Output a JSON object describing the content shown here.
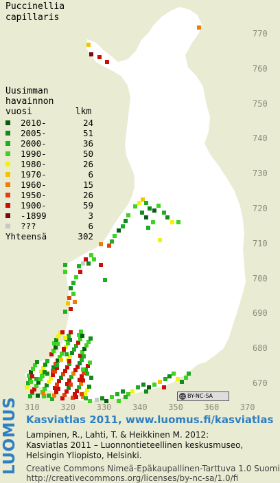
{
  "map": {
    "species": "Puccinellia",
    "species_line2": "capillaris",
    "legend_header": [
      "Uusimman",
      "havainnon",
      "vuosi        lkm"
    ],
    "legend": [
      {
        "label": "2010-",
        "count": "24",
        "color": "#0a5c12"
      },
      {
        "label": "2005-",
        "count": "51",
        "color": "#138a1c"
      },
      {
        "label": "2000-",
        "count": "36",
        "color": "#1fae22"
      },
      {
        "label": "1990-",
        "count": "50",
        "color": "#3cd41e"
      },
      {
        "label": "1980-",
        "count": "26",
        "color": "#f2f20a"
      },
      {
        "label": "1970-",
        "count": "6",
        "color": "#f2c400"
      },
      {
        "label": "1960-",
        "count": "15",
        "color": "#f07d0a"
      },
      {
        "label": "1950-",
        "count": "26",
        "color": "#e0410d"
      },
      {
        "label": "1900-",
        "count": "59",
        "color": "#c80f0a"
      },
      {
        "label": "-1899",
        "count": "3",
        "color": "#7d0a0a"
      },
      {
        "label": "???",
        "count": "6",
        "color": "#c8c8c8"
      }
    ],
    "total_label": "Yhteensä",
    "total_value": "302",
    "y_ticks": [
      "770",
      "760",
      "750",
      "740",
      "730",
      "720",
      "710",
      "700",
      "690",
      "680",
      "670"
    ],
    "x_ticks": [
      "310",
      "320",
      "330",
      "340",
      "350",
      "360",
      "370"
    ],
    "cc_badge": "BY-NC-SA"
  },
  "footer": {
    "brand": "LUOMUS",
    "link": "Kasviatlas 2011, www.luomus.fi/kasviatlas",
    "citation_1": "Lampinen, R., Lahti, T. & Heikkinen M. 2012:",
    "citation_2": "Kasviatlas 2011 – Luonnontieteellinen keskusmuseo,",
    "citation_3": "Helsingin Yliopisto, Helsinki.",
    "license_1": "Creative Commons Nimeä-Epäkaupallinen-Tarttuva 1.0 Suomi",
    "license_2": "http://creativecommons.org/licenses/by-nc-sa/1.0/fi"
  },
  "colors": {
    "land": "#ffffff",
    "background": "#e9ebd2",
    "brand_blue": "#2f7fc1",
    "axis_text": "#8b8b7a"
  }
}
